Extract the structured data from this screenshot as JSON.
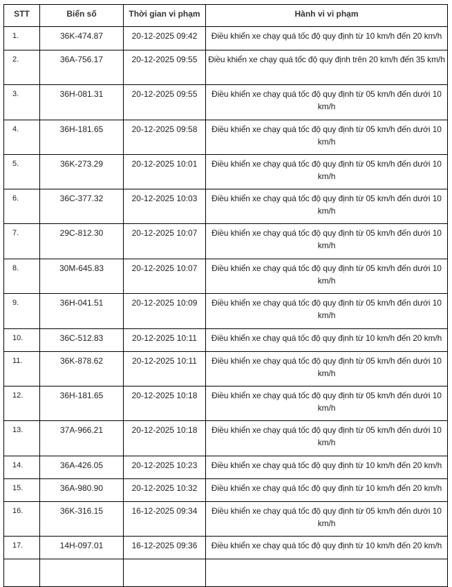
{
  "table": {
    "headers": [
      "STT",
      "Biển số",
      "Thời gian vi phạm",
      "Hành vi vi phạm"
    ],
    "rows": [
      {
        "stt": "1.",
        "plate": "36K-474.87",
        "time": "20-12-2025 09:42",
        "behavior": "Điều khiển xe chạy quá tốc độ quy định từ 10 km/h đến 20 km/h"
      },
      {
        "stt": "2.",
        "plate": "36A-756.17",
        "time": "20-12-2025 09:55",
        "behavior": "Điều khiển xe chạy quá tốc độ quy định trên 20 km/h đến 35 km/h"
      },
      {
        "stt": "3.",
        "plate": "36H-081.31",
        "time": "20-12-2025 09:55",
        "behavior": "Điều khiển xe chạy quá tốc độ quy định từ 05 km/h đến dưới 10 km/h"
      },
      {
        "stt": "4.",
        "plate": "36H-181.65",
        "time": "20-12-2025 09:58",
        "behavior": "Điều khiển xe chạy quá tốc độ quy định từ 05 km/h đến dưới 10 km/h"
      },
      {
        "stt": "5.",
        "plate": "36K-273.29",
        "time": "20-12-2025 10:01",
        "behavior": "Điều khiển xe chạy quá tốc độ quy định từ 05 km/h đến dưới 10 km/h"
      },
      {
        "stt": "6.",
        "plate": "36C-377.32",
        "time": "20-12-2025 10:03",
        "behavior": "Điều khiển xe chạy quá tốc độ quy định từ 05 km/h đến dưới 10 km/h"
      },
      {
        "stt": "7.",
        "plate": "29C-812.30",
        "time": "20-12-2025 10:07",
        "behavior": "Điều khiển xe chạy quá tốc độ quy định từ 05 km/h đến dưới 10 km/h"
      },
      {
        "stt": "8.",
        "plate": "30M-645.83",
        "time": "20-12-2025 10:07",
        "behavior": "Điều khiển xe chạy quá tốc độ quy định từ 05 km/h đến dưới 10 km/h"
      },
      {
        "stt": "9.",
        "plate": "36H-041.51",
        "time": "20-12-2025 10:09",
        "behavior": "Điều khiển xe chạy quá tốc độ quy định từ 05 km/h đến dưới 10 km/h"
      },
      {
        "stt": "10.",
        "plate": "36C-512.83",
        "time": "20-12-2025 10:11",
        "behavior": "Điều khiển xe chạy quá tốc độ quy định từ 10 km/h đến 20 km/h"
      },
      {
        "stt": "11.",
        "plate": "36K-878.62",
        "time": "20-12-2025 10:11",
        "behavior": "Điều khiển xe chạy quá tốc độ quy định từ 05 km/h đến dưới 10 km/h"
      },
      {
        "stt": "12.",
        "plate": "36H-181.65",
        "time": "20-12-2025 10:18",
        "behavior": "Điều khiển xe chạy quá tốc độ quy định từ 05 km/h đến dưới 10 km/h"
      },
      {
        "stt": "13.",
        "plate": "37A-966.21",
        "time": "20-12-2025 10:18",
        "behavior": "Điều khiển xe chạy quá tốc độ quy định từ 05 km/h đến dưới 10 km/h"
      },
      {
        "stt": "14.",
        "plate": "36A-426.05",
        "time": "20-12-2025 10:23",
        "behavior": "Điều khiển xe chạy quá tốc độ quy định từ 10 km/h đến 20 km/h"
      },
      {
        "stt": "15.",
        "plate": "36A-980.90",
        "time": "20-12-2025 10:32",
        "behavior": "Điều khiển xe chạy quá tốc độ quy định từ 10 km/h đến 20 km/h"
      },
      {
        "stt": "16.",
        "plate": "36K-316.15",
        "time": "16-12-2025 09:34",
        "behavior": "Điều khiển xe chạy quá tốc độ quy định từ 05 km/h đến dưới 10 km/h"
      },
      {
        "stt": "17.",
        "plate": "14H-097.01",
        "time": "16-12-2025 09:36",
        "behavior": "Điều khiển xe chạy quá tốc độ quy định từ 10 km/h đến 20 km/h"
      }
    ]
  }
}
